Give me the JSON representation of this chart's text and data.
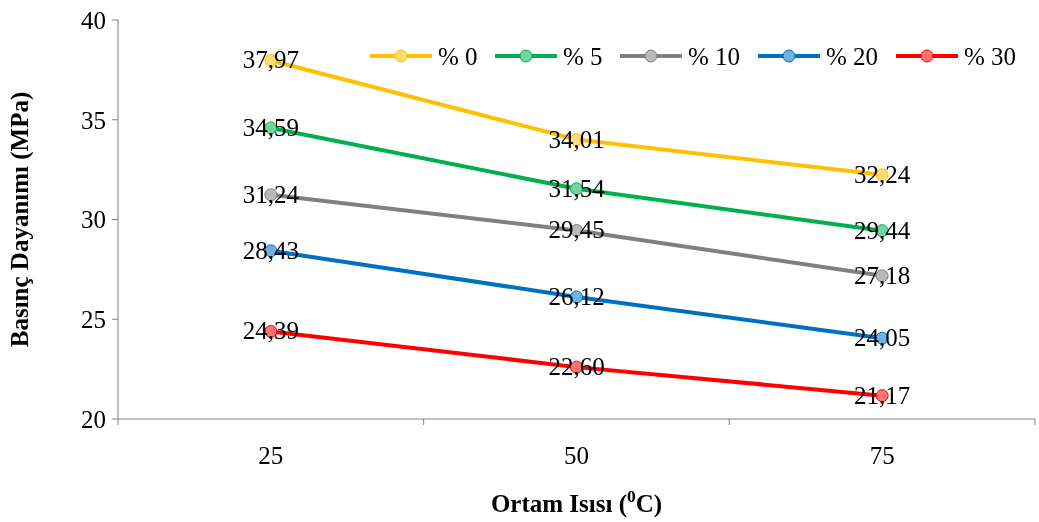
{
  "chart_data": {
    "type": "line",
    "xlabel": "Ortam Isısı ($^{0}$C)",
    "ylabel": "Basınç Dayanımı (MPa)",
    "categories": [
      "25",
      "50",
      "75"
    ],
    "ylim": [
      20,
      40
    ],
    "yticks": [
      20,
      25,
      30,
      35,
      40
    ],
    "grid": false,
    "legend": "top right",
    "marker": "circle",
    "line_style": "solid",
    "series": [
      {
        "name": "% 0",
        "color": "#ffc000",
        "values": [
          37.97,
          34.01,
          32.24
        ],
        "value_labels": [
          "37,97",
          "34,01",
          "32,24"
        ]
      },
      {
        "name": "% 5",
        "color": "#00b050",
        "values": [
          34.59,
          31.54,
          29.44
        ],
        "value_labels": [
          "34,59",
          "31,54",
          "29,44"
        ]
      },
      {
        "name": "% 10",
        "color": "#808080",
        "values": [
          31.24,
          29.45,
          27.18
        ],
        "value_labels": [
          "31,24",
          "29,45",
          "27,18"
        ]
      },
      {
        "name": "% 20",
        "color": "#0070c0",
        "values": [
          28.43,
          26.12,
          24.05
        ],
        "value_labels": [
          "28,43",
          "26,12",
          "24,05"
        ]
      },
      {
        "name": "% 30",
        "color": "#ff0000",
        "values": [
          24.39,
          22.6,
          21.17
        ],
        "value_labels": [
          "24,39",
          "22,60",
          "21,17"
        ]
      }
    ]
  }
}
